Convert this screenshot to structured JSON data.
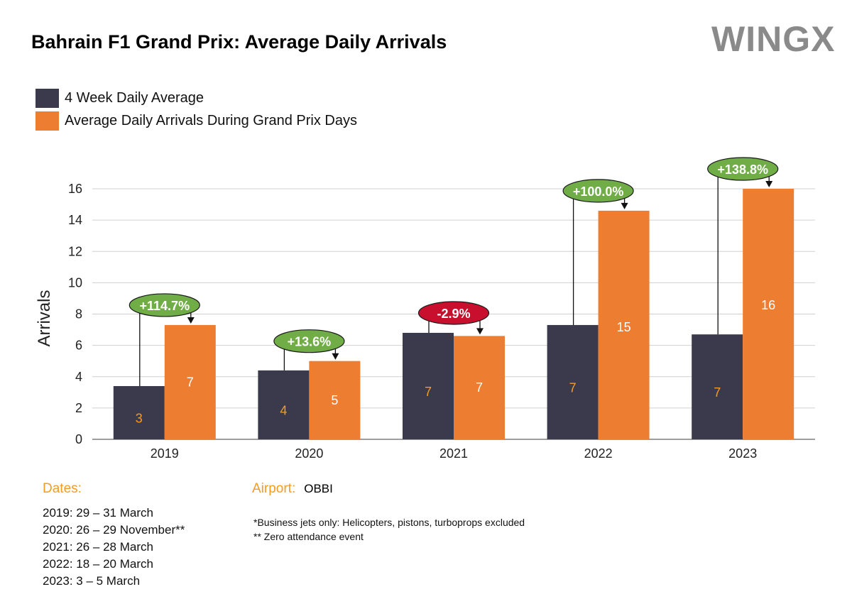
{
  "title": "Bahrain F1 Grand Prix: Average Daily Arrivals",
  "logo": "WINGX",
  "legend": [
    {
      "label": "4 Week Daily Average",
      "color": "#3b3a4d"
    },
    {
      "label": "Average Daily Arrivals During Grand Prix Days",
      "color": "#ed7d31"
    }
  ],
  "chart_data": {
    "type": "bar",
    "categories": [
      "2019",
      "2020",
      "2021",
      "2022",
      "2023"
    ],
    "series": [
      {
        "name": "4 Week Daily Average",
        "values": [
          3.4,
          4.4,
          6.8,
          7.3,
          6.7
        ],
        "labels": [
          "3",
          "4",
          "7",
          "7",
          "7"
        ],
        "color": "#3b3a4d",
        "label_color": "#f39c22"
      },
      {
        "name": "Average Daily Arrivals During Grand Prix Days",
        "values": [
          7.3,
          5.0,
          6.6,
          14.6,
          16.0
        ],
        "labels": [
          "7",
          "5",
          "7",
          "15",
          "16"
        ],
        "color": "#ed7d31",
        "label_color": "#ffffff"
      }
    ],
    "changes": [
      {
        "text": "+114.7%",
        "color": "#70ad47"
      },
      {
        "text": "+13.6%",
        "color": "#70ad47"
      },
      {
        "text": "-2.9%",
        "color": "#c8102e"
      },
      {
        "text": "+100.0%",
        "color": "#70ad47"
      },
      {
        "text": "+138.8%",
        "color": "#70ad47"
      }
    ],
    "ylabel": "Arrivals",
    "ylim": [
      0,
      16
    ],
    "yticks": [
      0,
      2,
      4,
      6,
      8,
      10,
      12,
      14,
      16
    ],
    "grid": true
  },
  "notes": {
    "dates_heading": "Dates:",
    "dates": [
      "2019: 29 – 31 March",
      "2020: 26 – 29 November**",
      "2021:  26 – 28 March",
      "2022: 18 – 20 March",
      "2023: 3 – 5 March"
    ],
    "airport_label": "Airport:",
    "airport_value": "OBBI",
    "footnote1": "*Business jets only: Helicopters, pistons, turboprops excluded",
    "footnote2": "** Zero attendance event"
  }
}
